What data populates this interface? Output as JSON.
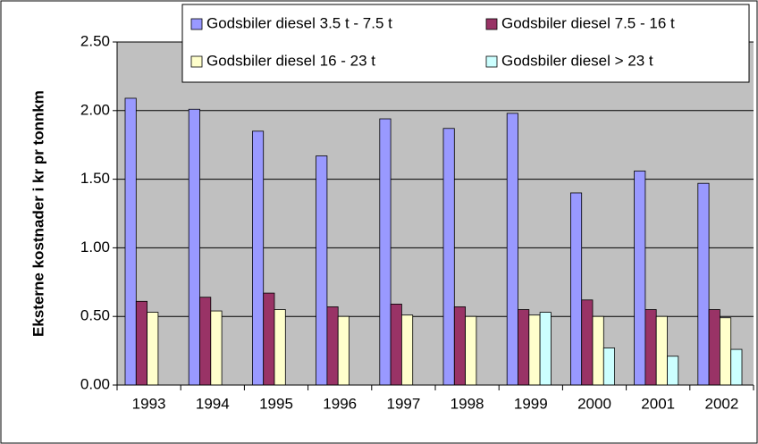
{
  "chart_data": {
    "type": "bar",
    "y_label": "Eksterne kostnader i kr pr tonnkm",
    "categories": [
      "1993",
      "1994",
      "1995",
      "1996",
      "1997",
      "1998",
      "1999",
      "2000",
      "2001",
      "2002"
    ],
    "series": [
      {
        "name": "Godsbiler diesel 3.5 t - 7.5 t",
        "color": "#9999ff",
        "values": [
          2.09,
          2.01,
          1.85,
          1.67,
          1.94,
          1.87,
          1.98,
          1.4,
          1.56,
          1.47
        ]
      },
      {
        "name": "Godsbiler diesel 7.5 - 16 t",
        "color": "#993366",
        "values": [
          0.61,
          0.64,
          0.67,
          0.57,
          0.59,
          0.57,
          0.55,
          0.62,
          0.55,
          0.55
        ]
      },
      {
        "name": "Godsbiler diesel 16 - 23 t",
        "color": "#ffffcc",
        "values": [
          0.53,
          0.54,
          0.55,
          0.5,
          0.51,
          0.5,
          0.51,
          0.5,
          0.5,
          0.49
        ]
      },
      {
        "name": "Godsbiler diesel > 23 t",
        "color": "#ccffff",
        "values": [
          null,
          null,
          null,
          null,
          null,
          null,
          0.53,
          0.27,
          0.21,
          0.26
        ]
      }
    ],
    "ylim": [
      0,
      2.5
    ],
    "yticks": [
      {
        "value": 0,
        "label": "0.00"
      },
      {
        "value": 0.5,
        "label": "0.50"
      },
      {
        "value": 1,
        "label": "1.00"
      },
      {
        "value": 1.5,
        "label": "1.50"
      },
      {
        "value": 2,
        "label": "2.00"
      },
      {
        "value": 2.5,
        "label": "2.50"
      }
    ],
    "grid": true,
    "plot_background": "#c0c0c0"
  }
}
